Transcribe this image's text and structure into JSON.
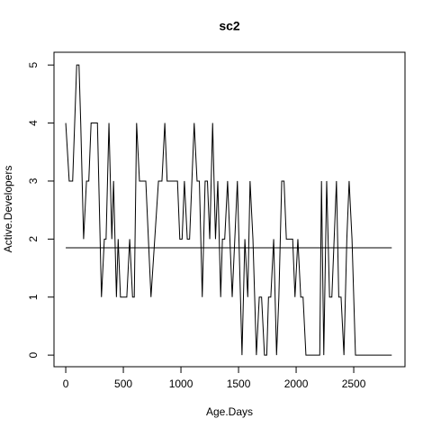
{
  "chart_data": {
    "type": "line",
    "title": "sc2",
    "x_label": "Age.Days",
    "y_label": "Active.Developers",
    "x": [
      0,
      30,
      60,
      95,
      115,
      130,
      155,
      180,
      200,
      220,
      275,
      310,
      335,
      350,
      375,
      400,
      415,
      440,
      455,
      475,
      530,
      555,
      580,
      595,
      615,
      640,
      695,
      740,
      805,
      835,
      860,
      880,
      970,
      990,
      1010,
      1030,
      1055,
      1075,
      1115,
      1140,
      1160,
      1185,
      1210,
      1230,
      1250,
      1275,
      1300,
      1320,
      1345,
      1360,
      1380,
      1405,
      1445,
      1490,
      1530,
      1555,
      1580,
      1600,
      1625,
      1655,
      1680,
      1700,
      1725,
      1745,
      1760,
      1780,
      1805,
      1830,
      1850,
      1875,
      1895,
      1915,
      1970,
      1990,
      2015,
      2040,
      2060,
      2085,
      2205,
      2220,
      2240,
      2265,
      2290,
      2310,
      2350,
      2370,
      2390,
      2415,
      2440,
      2460,
      2485,
      2515,
      2830
    ],
    "values": [
      4,
      3,
      3,
      5,
      5,
      4,
      2,
      3,
      3,
      4,
      4,
      1,
      2,
      2,
      4,
      2,
      3,
      1,
      2,
      1,
      1,
      2,
      1,
      1,
      4,
      3,
      3,
      1,
      3,
      3,
      4,
      3,
      3,
      2,
      2,
      3,
      2,
      2,
      4,
      3,
      3,
      1,
      3,
      3,
      2,
      4,
      2,
      3,
      1,
      2,
      2,
      3,
      1,
      3,
      0,
      2,
      1,
      3,
      2,
      0,
      1,
      1,
      0,
      0,
      1,
      1,
      2,
      0,
      1,
      3,
      3,
      2,
      2,
      1,
      2,
      1,
      1,
      0,
      0,
      3,
      0,
      3,
      1,
      1,
      3,
      1,
      1,
      0,
      2,
      3,
      2,
      0,
      0
    ],
    "color": "#000000",
    "reference_line": 1.85,
    "xlim": [
      -102,
      2945
    ],
    "ylim": [
      -0.2,
      5.22
    ],
    "xticks": [
      0,
      500,
      1000,
      1500,
      2000,
      2500
    ],
    "yticks": [
      0,
      1,
      2,
      3,
      4,
      5
    ]
  }
}
